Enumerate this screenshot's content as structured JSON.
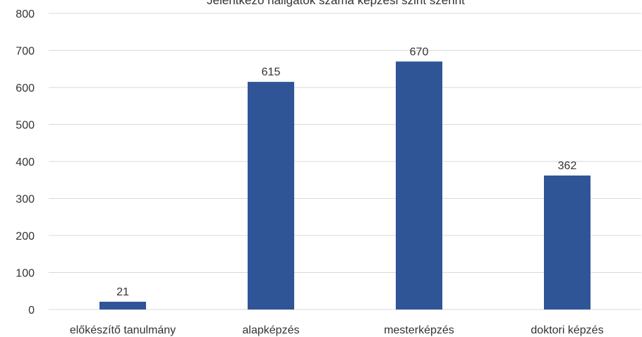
{
  "chart_data": {
    "type": "bar",
    "title": "Jelentkező hallgatók száma képzési szint szerint",
    "categories": [
      "előkészítő tanulmány",
      "alapképzés",
      "mesterképzés",
      "doktori képzés"
    ],
    "values": [
      21,
      615,
      670,
      362
    ],
    "data_labels": [
      "21",
      "615",
      "670",
      "362"
    ],
    "ylim": [
      0,
      800
    ],
    "yticks": [
      0,
      100,
      200,
      300,
      400,
      500,
      600,
      700,
      800
    ],
    "grid": true,
    "legend": "none",
    "bar_color": "#2F5597",
    "grid_color": "#D9D9D9"
  }
}
